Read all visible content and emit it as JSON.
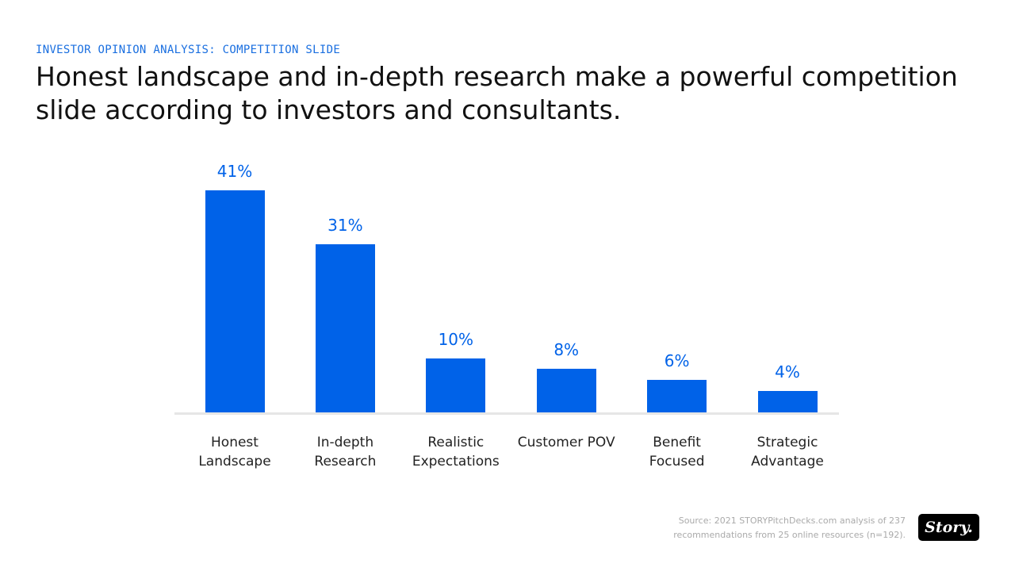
{
  "chart_data": {
    "type": "bar",
    "kicker": "INVESTOR OPINION ANALYSIS: COMPETITION SLIDE",
    "title": "Honest landscape and in-depth research make a powerful competition slide according to investors and consultants.",
    "categories": [
      "Honest Landscape",
      "In-depth Research",
      "Realistic Expectations",
      "Customer POV",
      "Benefit Focused",
      "Strategic Advantage"
    ],
    "values": [
      41,
      31,
      10,
      8,
      6,
      4
    ],
    "value_labels": [
      "41%",
      "31%",
      "10%",
      "8%",
      "6%",
      "4%"
    ],
    "color": "#0062e8",
    "source": "Source: 2021 STORYPitchDecks.com analysis of 237 recommendations from 25 online resources (n=192).",
    "logo": "Story."
  }
}
